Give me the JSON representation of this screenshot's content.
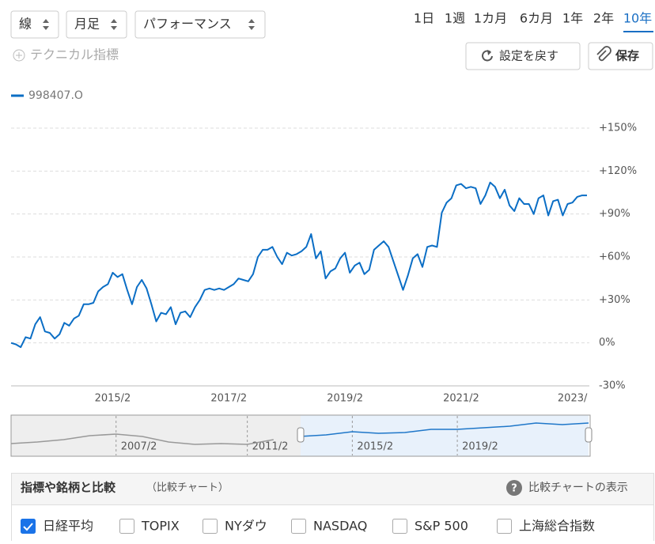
{
  "controls": {
    "dropdowns": [
      "線",
      "月足",
      "パフォーマンス"
    ],
    "periods": [
      "1日",
      "1週",
      "1カ月",
      "6カ月",
      "1年",
      "2年",
      "10年"
    ],
    "selected_period": 6,
    "technical": "テクニカル指標",
    "reset_button": "設定を戻す",
    "save_button": "保存"
  },
  "chart_data": [
    {
      "type": "line",
      "categories": [
        null,
        null,
        null,
        null,
        null,
        null,
        null,
        null,
        null,
        null,
        null,
        null,
        null,
        null,
        null,
        null,
        null,
        null,
        null,
        null,
        null,
        "2015/2",
        null,
        null,
        null,
        null,
        null,
        null,
        null,
        null,
        null,
        null,
        null,
        null,
        null,
        null,
        null,
        null,
        null,
        null,
        null,
        null,
        null,
        null,
        null,
        "2017/2",
        null,
        null,
        null,
        null,
        null,
        null,
        null,
        null,
        null,
        null,
        null,
        null,
        null,
        null,
        null,
        null,
        null,
        null,
        null,
        null,
        null,
        null,
        null,
        "2019/2",
        null,
        null,
        null,
        null,
        null,
        null,
        null,
        null,
        null,
        null,
        null,
        null,
        null,
        null,
        null,
        null,
        null,
        null,
        null,
        null,
        null,
        null,
        null,
        "2021/2",
        null,
        null,
        null,
        null,
        null,
        null,
        null,
        null,
        null,
        null,
        null,
        null,
        null,
        null,
        null,
        null,
        null,
        null,
        null,
        null,
        null,
        null,
        "2023/",
        null,
        null,
        null
      ],
      "series": [
        {
          "name": "998407.O",
          "color": "#0b6ec5",
          "values": [
            0,
            -1,
            -3,
            4,
            3,
            13,
            18,
            8,
            7,
            3,
            6,
            14,
            12,
            17,
            19,
            27,
            27,
            28,
            36,
            39,
            41,
            49,
            46,
            48,
            37,
            27,
            39,
            44,
            38,
            27,
            15,
            21,
            20,
            25,
            13,
            21,
            22,
            18,
            25,
            30,
            37,
            38,
            37,
            38,
            37,
            39,
            41,
            45,
            44,
            43,
            48,
            60,
            65,
            65,
            67,
            60,
            55,
            63,
            61,
            62,
            64,
            67,
            76,
            59,
            64,
            45,
            50,
            52,
            59,
            63,
            49,
            54,
            56,
            48,
            51,
            65,
            68,
            71,
            67,
            57,
            47,
            37,
            47,
            59,
            62,
            53,
            67,
            68,
            67,
            91,
            98,
            101,
            110,
            111,
            108,
            109,
            108,
            97,
            103,
            112,
            109,
            101,
            107,
            96,
            92,
            101,
            97,
            97,
            90,
            101,
            103,
            89,
            99,
            100,
            89,
            97,
            98,
            102,
            103,
            103
          ]
        }
      ],
      "ylim": [
        -30,
        150
      ],
      "yticks": [
        {
          "value": -30,
          "label": "-30%"
        },
        {
          "value": 0,
          "label": "0%"
        },
        {
          "value": 30,
          "label": "+30%"
        },
        {
          "value": 60,
          "label": "+60%"
        },
        {
          "value": 90,
          "label": "+90%"
        },
        {
          "value": 120,
          "label": "+120%"
        },
        {
          "value": 150,
          "label": "+150%"
        }
      ],
      "grid": true
    },
    {
      "type": "line",
      "categories": [
        null,
        null,
        null,
        null,
        "2007/2",
        null,
        null,
        null,
        null,
        "2011/2",
        null,
        null,
        null,
        "2015/2",
        null,
        null,
        null,
        "2019/2",
        null,
        null,
        null,
        null,
        null
      ],
      "series": [
        {
          "color": "#999999",
          "values": [
            -10,
            0,
            15,
            40,
            50,
            35,
            0,
            -15,
            -10,
            -15,
            15,
            null,
            null,
            null,
            null,
            null,
            null,
            null,
            null,
            null,
            null,
            null,
            null
          ]
        },
        {
          "color": "#1f77c9",
          "values": [
            null,
            null,
            null,
            null,
            null,
            null,
            null,
            null,
            null,
            null,
            null,
            35,
            45,
            65,
            55,
            60,
            80,
            80,
            90,
            100,
            120,
            110,
            120
          ]
        }
      ],
      "ylim": [
        -80,
        160
      ]
    }
  ],
  "compare": {
    "title": "指標や銘柄と比較",
    "subtitle": "（比較チャート）",
    "help": "比較チャートの表示",
    "options": [
      "日経平均",
      "TOPIX",
      "NYダウ",
      "NASDAQ",
      "S&P 500",
      "上海総合指数"
    ],
    "checked": [
      true,
      false,
      false,
      false,
      false,
      false
    ]
  }
}
